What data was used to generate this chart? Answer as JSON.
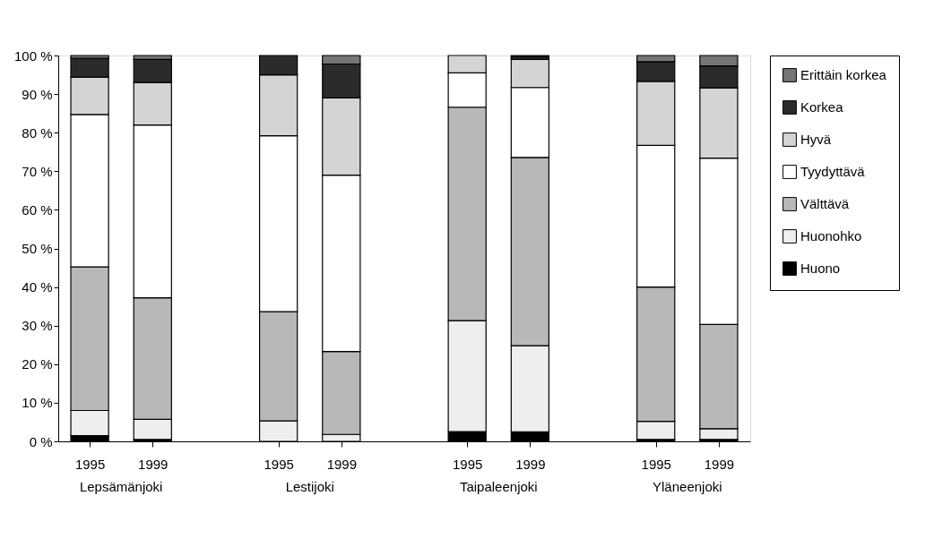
{
  "chart_data": {
    "type": "bar",
    "stacked": true,
    "categories": [
      "1995",
      "1999",
      null,
      "1995",
      "1999",
      null,
      "1995",
      "1999",
      null,
      "1995",
      "1999"
    ],
    "annotations": [
      "Lepsämänjoki",
      "Lestijoki",
      "Taipaleenjoki",
      "Yläneenjoki"
    ],
    "ylim": [
      0,
      100
    ],
    "yticks": [
      {
        "value": 0,
        "label": "0 %"
      },
      {
        "value": 10,
        "label": "10 %"
      },
      {
        "value": 20,
        "label": "20 %"
      },
      {
        "value": 30,
        "label": "30 %"
      },
      {
        "value": 40,
        "label": "40 %"
      },
      {
        "value": 50,
        "label": "50 %"
      },
      {
        "value": 60,
        "label": "60 %"
      },
      {
        "value": 70,
        "label": "70 %"
      },
      {
        "value": 80,
        "label": "80 %"
      },
      {
        "value": 90,
        "label": "90 %"
      },
      {
        "value": 100,
        "label": "100 %"
      }
    ],
    "grid": false,
    "legend": "right",
    "series": [
      {
        "name": "Huono",
        "color": "#000000",
        "values": [
          1.5,
          0.5,
          null,
          0,
          0,
          null,
          2.5,
          2.5,
          null,
          0.5,
          0.5
        ]
      },
      {
        "name": "Huonohko",
        "color": "#eeeeee",
        "values": [
          6.5,
          5.2,
          null,
          5.3,
          1.8,
          null,
          28.8,
          22.3,
          null,
          4.7,
          2.8
        ]
      },
      {
        "name": "Välttävä",
        "color": "#b8b8b8",
        "values": [
          37.2,
          31.5,
          null,
          28.3,
          21.5,
          null,
          55.3,
          48.8,
          null,
          34.8,
          27
        ]
      },
      {
        "name": "Tyydyttävä",
        "color": "#ffffff",
        "values": [
          39.5,
          44.8,
          null,
          45.6,
          45.7,
          null,
          8.9,
          18.1,
          null,
          36.7,
          43.1
        ]
      },
      {
        "name": "Hyvä",
        "color": "#d4d4d4",
        "values": [
          9.7,
          11,
          null,
          15.8,
          20,
          null,
          4.5,
          7.3,
          null,
          16.6,
          18.2
        ]
      },
      {
        "name": "Korkea",
        "color": "#2b2b2b",
        "values": [
          4.9,
          6,
          null,
          5,
          8.8,
          null,
          0,
          0.7,
          null,
          5.1,
          5.7
        ]
      },
      {
        "name": "Erittäin korkea",
        "color": "#767676",
        "values": [
          0.7,
          1,
          null,
          0,
          2.2,
          null,
          0,
          0.3,
          null,
          1.6,
          2.7
        ]
      }
    ]
  }
}
